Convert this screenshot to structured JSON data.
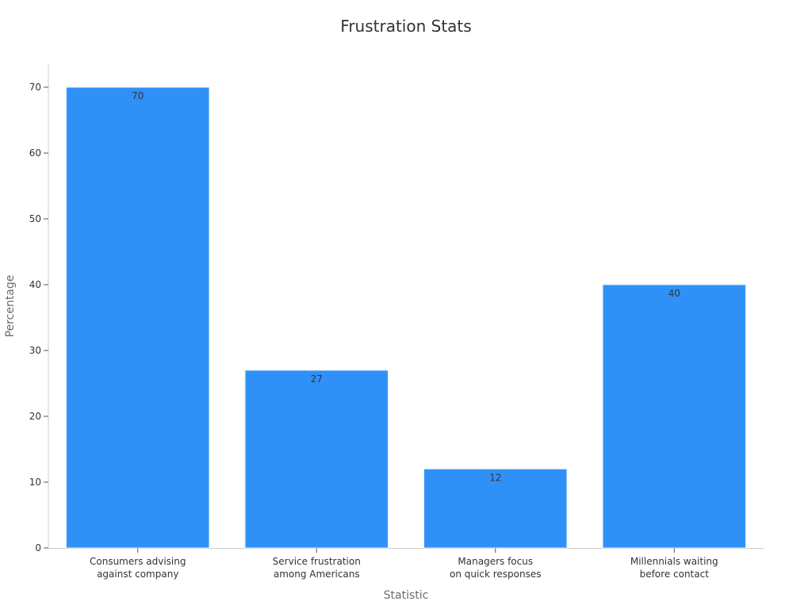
{
  "chart_data": {
    "type": "bar",
    "title": "Frustration Stats",
    "xlabel": "Statistic",
    "ylabel": "Percentage",
    "categories": [
      [
        "Consumers advising",
        "against company"
      ],
      [
        "Service frustration",
        "among Americans"
      ],
      [
        "Managers focus",
        "on quick responses"
      ],
      [
        "Millennials waiting",
        "before contact"
      ]
    ],
    "values": [
      70,
      27,
      12,
      40
    ],
    "data_labels": [
      "70",
      "27",
      "12",
      "40"
    ],
    "ylim": [
      0,
      73.5
    ],
    "yticks": [
      0,
      10,
      20,
      30,
      40,
      50,
      60,
      70
    ],
    "grid": false,
    "legend": "none",
    "colors": {
      "bar": "#2f91f8",
      "bar_edge": "#e6f0fb",
      "axis": "#cccccc",
      "text": "#333333",
      "axis_title": "#6b6b6b"
    }
  }
}
